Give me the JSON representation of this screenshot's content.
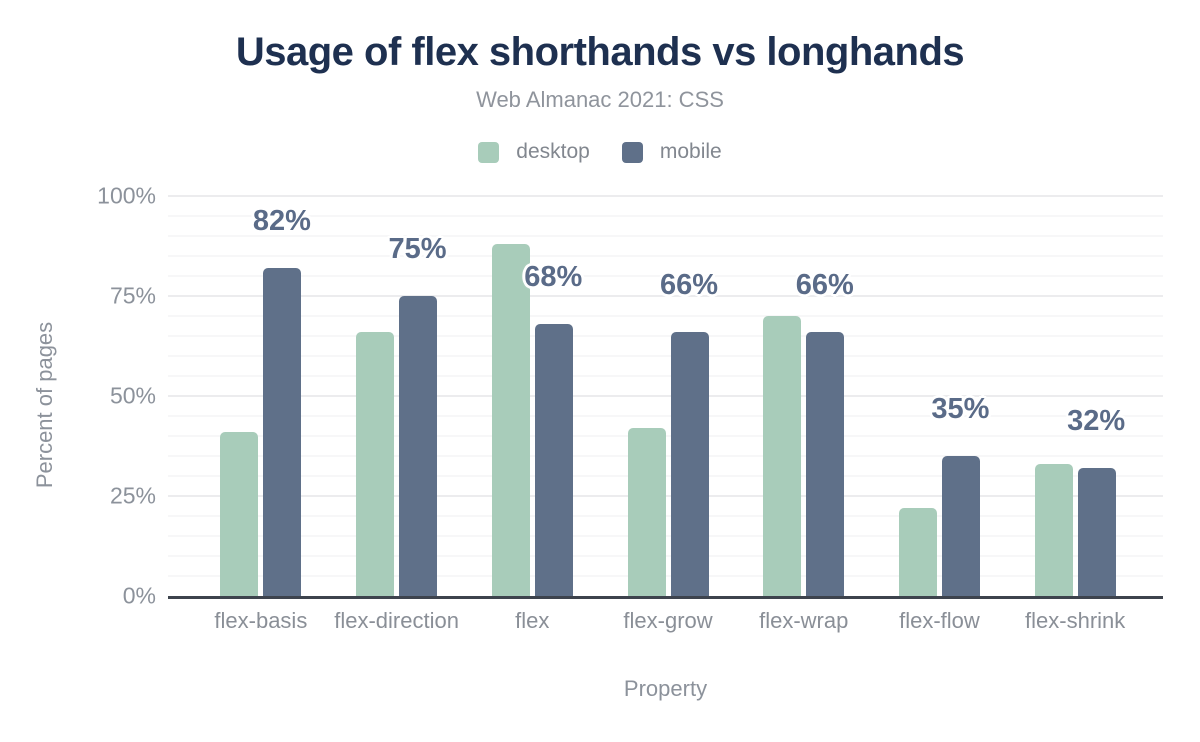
{
  "title": "Usage of flex shorthands vs longhands",
  "subtitle": "Web Almanac 2021: CSS",
  "legend": [
    {
      "label": "desktop",
      "color": "#a8ccba"
    },
    {
      "label": "mobile",
      "color": "#5f7089"
    }
  ],
  "y_axis": {
    "title": "Percent of pages",
    "tick_labels": [
      "100%",
      "75%",
      "50%",
      "25%",
      "0%"
    ]
  },
  "x_axis": {
    "title": "Property"
  },
  "colors": {
    "title_text": "#1e3050",
    "muted_text": "#8c929b",
    "data_label_text": "#5a6b88",
    "axis_line": "#3d434d",
    "major_gridline": "#ececee",
    "minor_gridline": "#f7f7f8",
    "desktop_bar": "#a8ccba",
    "mobile_bar": "#5f7089"
  },
  "chart_data": {
    "type": "bar",
    "title": "Usage of flex shorthands vs longhands",
    "subtitle": "Web Almanac 2021: CSS",
    "categories": [
      "flex-basis",
      "flex-direction",
      "flex",
      "flex-grow",
      "flex-wrap",
      "flex-flow",
      "flex-shrink"
    ],
    "series": [
      {
        "name": "desktop",
        "color": "#a8ccba",
        "values": [
          41,
          66,
          88,
          42,
          70,
          22,
          33
        ]
      },
      {
        "name": "mobile",
        "color": "#5f7089",
        "values": [
          82,
          75,
          68,
          66,
          66,
          35,
          32
        ]
      }
    ],
    "data_labels": {
      "labeled_series": "mobile",
      "values": [
        "82%",
        "75%",
        "68%",
        "66%",
        "66%",
        "35%",
        "32%"
      ]
    },
    "xlabel": "Property",
    "ylabel": "Percent of pages",
    "ylim": [
      0,
      100
    ],
    "yticks": [
      0,
      25,
      50,
      75,
      100
    ],
    "ytick_format": "percent",
    "minor_grid_step": 5,
    "grid": "horizontal-only",
    "legend_position": "top"
  }
}
